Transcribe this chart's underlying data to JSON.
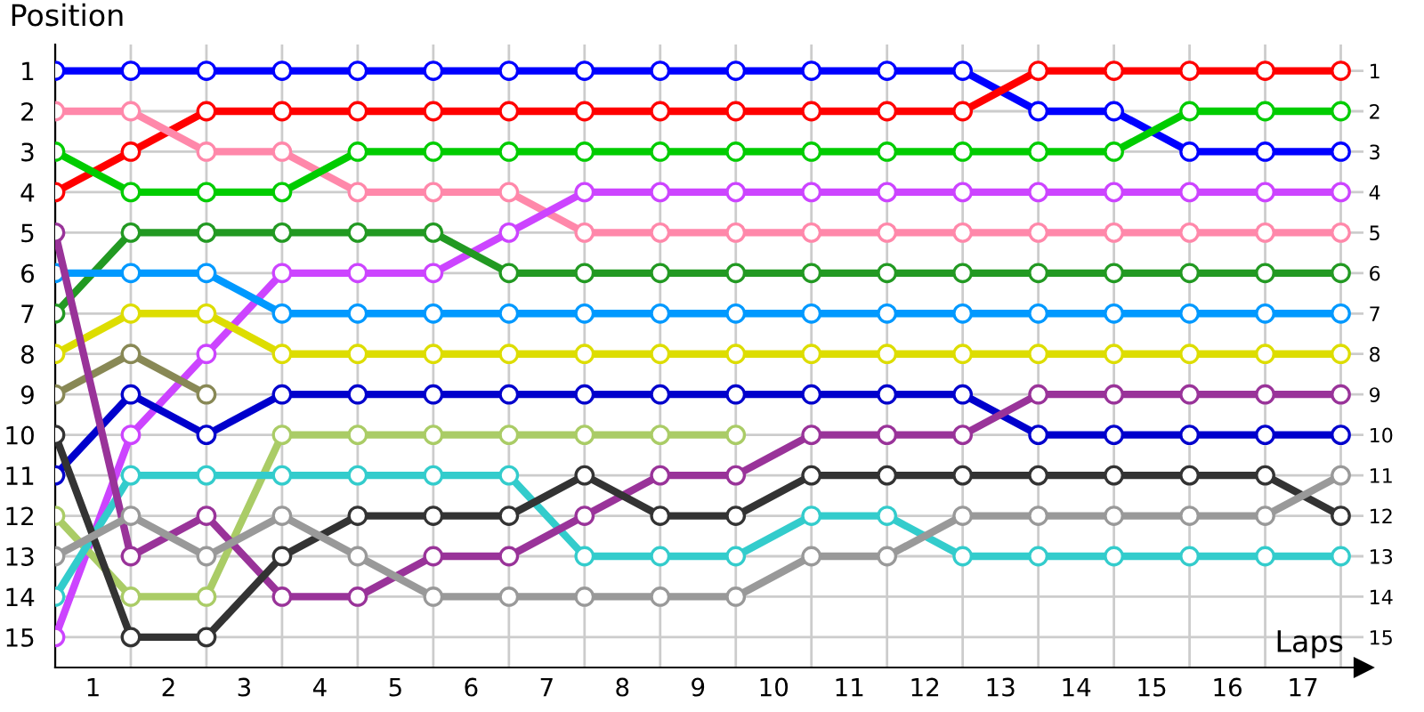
{
  "chart_data": {
    "type": "line",
    "xlabel": "Laps",
    "ylabel": "Position",
    "x": [
      0,
      1,
      2,
      3,
      4,
      5,
      6,
      7,
      8,
      9,
      10,
      11,
      12,
      13,
      14,
      15,
      16,
      17
    ],
    "xlim": [
      0,
      17.3
    ],
    "xticks": [
      {
        "value": 0.5,
        "label": "1"
      },
      {
        "value": 1.5,
        "label": "2"
      },
      {
        "value": 2.5,
        "label": "3"
      },
      {
        "value": 3.5,
        "label": "4"
      },
      {
        "value": 4.5,
        "label": "5"
      },
      {
        "value": 5.5,
        "label": "6"
      },
      {
        "value": 6.5,
        "label": "7"
      },
      {
        "value": 7.5,
        "label": "8"
      },
      {
        "value": 8.5,
        "label": "9"
      },
      {
        "value": 9.5,
        "label": "10"
      },
      {
        "value": 10.5,
        "label": "11"
      },
      {
        "value": 11.5,
        "label": "12"
      },
      {
        "value": 12.5,
        "label": "13"
      },
      {
        "value": 13.5,
        "label": "14"
      },
      {
        "value": 14.5,
        "label": "15"
      },
      {
        "value": 15.5,
        "label": "16"
      },
      {
        "value": 16.5,
        "label": "17"
      }
    ],
    "ylim": [
      15.75,
      0.35
    ],
    "yticks": [
      1,
      2,
      3,
      4,
      5,
      6,
      7,
      8,
      9,
      10,
      11,
      12,
      13,
      14,
      15
    ],
    "y2lim": [
      15.75,
      0.35
    ],
    "y2ticks": [
      1,
      2,
      3,
      4,
      5,
      6,
      7,
      8,
      9,
      10,
      11,
      12,
      13,
      14,
      15
    ],
    "grid": true,
    "marker": "circle",
    "line_style": "solid",
    "legend": false,
    "series": [
      {
        "color": "#0000ff",
        "values": [
          1,
          1,
          1,
          1,
          1,
          1,
          1,
          1,
          1,
          1,
          1,
          1,
          1,
          2,
          2,
          3,
          3,
          3
        ]
      },
      {
        "color": "#ff0000",
        "values": [
          4,
          3,
          2,
          2,
          2,
          2,
          2,
          2,
          2,
          2,
          2,
          2,
          2,
          1,
          1,
          1,
          1,
          1
        ]
      },
      {
        "color": "#ff88aa",
        "values": [
          2,
          2,
          3,
          3,
          4,
          4,
          4,
          5,
          5,
          5,
          5,
          5,
          5,
          5,
          5,
          5,
          5,
          5
        ]
      },
      {
        "color": "#00cc00",
        "values": [
          3,
          4,
          4,
          4,
          3,
          3,
          3,
          3,
          3,
          3,
          3,
          3,
          3,
          3,
          3,
          2,
          2,
          2
        ]
      },
      {
        "color": "#cc44ff",
        "values": [
          15,
          10,
          8,
          6,
          6,
          6,
          5,
          4,
          4,
          4,
          4,
          4,
          4,
          4,
          4,
          4,
          4,
          4
        ]
      },
      {
        "color": "#229922",
        "values": [
          7,
          5,
          5,
          5,
          5,
          5,
          6,
          6,
          6,
          6,
          6,
          6,
          6,
          6,
          6,
          6,
          6,
          6
        ]
      },
      {
        "color": "#0099ff",
        "values": [
          6,
          6,
          6,
          7,
          7,
          7,
          7,
          7,
          7,
          7,
          7,
          7,
          7,
          7,
          7,
          7,
          7,
          7
        ]
      },
      {
        "color": "#dddd00",
        "values": [
          8,
          7,
          7,
          8,
          8,
          8,
          8,
          8,
          8,
          8,
          8,
          8,
          8,
          8,
          8,
          8,
          8,
          8
        ]
      },
      {
        "color": "#888855",
        "values": [
          9,
          8,
          9,
          null,
          null,
          null,
          null,
          null,
          null,
          null,
          null,
          null,
          null,
          null,
          null,
          null,
          null,
          null
        ]
      },
      {
        "color": "#0000cc",
        "values": [
          11,
          9,
          10,
          9,
          9,
          9,
          9,
          9,
          9,
          9,
          9,
          9,
          9,
          10,
          10,
          10,
          10,
          10
        ]
      },
      {
        "color": "#aacc66",
        "values": [
          12,
          14,
          14,
          10,
          10,
          10,
          10,
          10,
          10,
          10,
          null,
          null,
          null,
          null,
          null,
          null,
          null,
          null
        ]
      },
      {
        "color": "#33cccc",
        "values": [
          14,
          11,
          11,
          11,
          11,
          11,
          11,
          13,
          13,
          13,
          12,
          12,
          13,
          13,
          13,
          13,
          13,
          13
        ]
      },
      {
        "color": "#993399",
        "values": [
          5,
          13,
          12,
          14,
          14,
          13,
          13,
          12,
          11,
          11,
          10,
          10,
          10,
          9,
          9,
          9,
          9,
          9
        ]
      },
      {
        "color": "#333333",
        "values": [
          10,
          15,
          15,
          13,
          12,
          12,
          12,
          11,
          12,
          12,
          11,
          11,
          11,
          11,
          11,
          11,
          11,
          12
        ]
      },
      {
        "color": "#999999",
        "values": [
          13,
          12,
          13,
          12,
          13,
          14,
          14,
          14,
          14,
          14,
          13,
          13,
          12,
          12,
          12,
          12,
          12,
          11
        ]
      }
    ]
  }
}
